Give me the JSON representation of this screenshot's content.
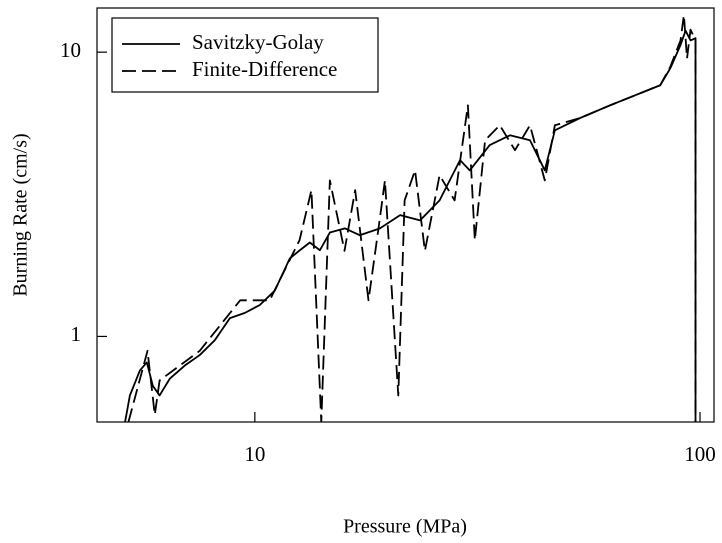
{
  "chart_data": {
    "type": "line",
    "xlabel": "Pressure (MPa)",
    "ylabel": "Burning Rate (cm/s)",
    "xscale": "log",
    "yscale": "log",
    "xlim": [
      4.42,
      107.5
    ],
    "ylim": [
      0.5,
      14.3
    ],
    "xticks": [
      10,
      100
    ],
    "yticks": [
      1,
      10
    ],
    "legend": "upper left",
    "series": [
      {
        "name": "Savitzky-Golay",
        "color": "#000000",
        "linestyle": "solid",
        "x": [
          5.11,
          5.24,
          5.52,
          5.72,
          5.9,
          6.11,
          6.44,
          6.96,
          7.52,
          8.13,
          8.79,
          9.5,
          10.26,
          11.09,
          11.98,
          12.62,
          13.29,
          14.0,
          14.74,
          15.93,
          17.2,
          19.1,
          21.2,
          23.5,
          26.0,
          28.9,
          30.4,
          33.7,
          37.4,
          41.5,
          44.8,
          47.2,
          53.7,
          62.8,
          73.4,
          81.4,
          85.8,
          90.4,
          92.8,
          95.2,
          97.7,
          97.7
        ],
        "values": [
          0.5,
          0.62,
          0.76,
          0.81,
          0.67,
          0.62,
          0.71,
          0.79,
          0.86,
          0.97,
          1.16,
          1.21,
          1.29,
          1.45,
          1.88,
          2.01,
          2.14,
          2.01,
          2.32,
          2.4,
          2.27,
          2.4,
          2.67,
          2.56,
          3.01,
          4.17,
          3.84,
          4.71,
          5.1,
          4.9,
          3.84,
          5.31,
          5.86,
          6.5,
          7.17,
          7.65,
          8.79,
          10.6,
          11.9,
          11.0,
          11.2,
          0.5
        ]
      },
      {
        "name": "Finite-Difference",
        "color": "#000000",
        "linestyle": "dashed",
        "x": [
          5.2,
          5.74,
          5.96,
          6.11,
          7.52,
          9.27,
          10.8,
          12.6,
          13.4,
          14.1,
          14.74,
          15.9,
          16.8,
          18.0,
          19.0,
          19.6,
          21.0,
          21.7,
          22.9,
          24.1,
          26.0,
          28.1,
          30.1,
          31.2,
          32.9,
          35.5,
          38.4,
          41.5,
          44.8,
          47.2,
          53.7,
          62.8,
          73.4,
          81.4,
          85.8,
          90.4,
          92.0,
          93.5,
          95.2,
          97.7,
          97.7
        ],
        "values": [
          0.5,
          0.89,
          0.53,
          0.7,
          0.89,
          1.34,
          1.34,
          2.18,
          3.27,
          0.5,
          3.54,
          2.0,
          3.27,
          1.34,
          2.46,
          3.54,
          0.62,
          3.01,
          3.84,
          2.0,
          3.69,
          3.01,
          6.5,
          2.18,
          4.9,
          5.53,
          4.52,
          5.53,
          3.54,
          5.53,
          5.86,
          6.5,
          7.17,
          7.65,
          8.9,
          11.0,
          13.5,
          9.5,
          12.0,
          11.0,
          0.5
        ]
      }
    ]
  }
}
